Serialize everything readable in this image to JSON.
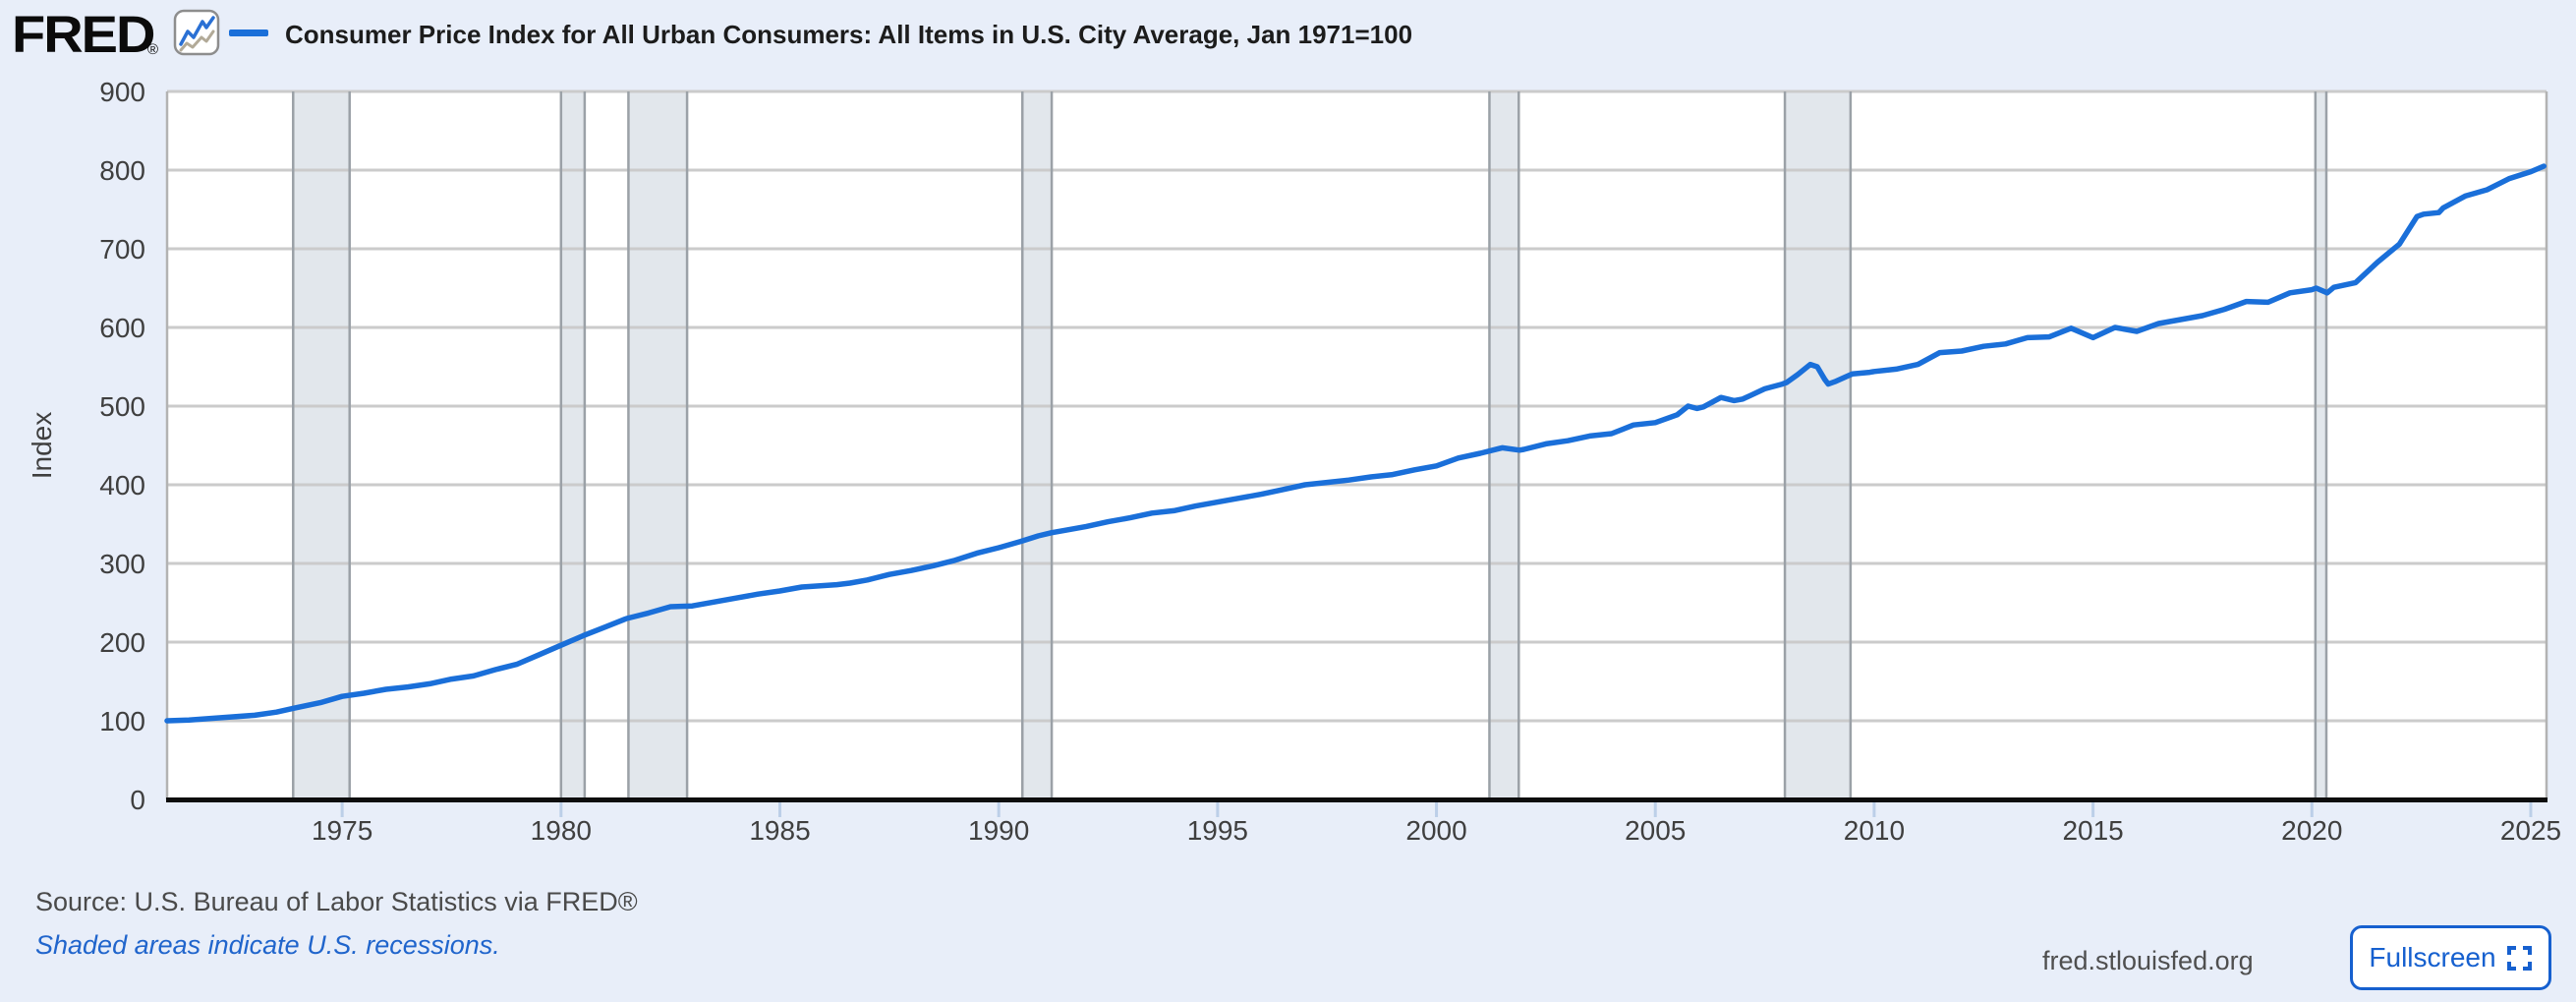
{
  "header": {
    "logo_text": "FRED",
    "registered_mark": "®",
    "title": "Consumer Price Index for All Urban Consumers: All Items in U.S. City Average, Jan 1971=100"
  },
  "footer": {
    "source": "Source: U.S. Bureau of Labor Statistics via FRED®",
    "recessions_note": "Shaded areas indicate U.S. recessions.",
    "site": "fred.stlouisfed.org",
    "fullscreen_label": "Fullscreen"
  },
  "colors": {
    "background": "#e8eef9",
    "plot_bg": "#ffffff",
    "line": "#1a6fd9",
    "gridline": "#cbcbcb",
    "plot_border": "#b3b3b3",
    "band_fill": "#e2e7ec",
    "band_edge": "#9ba1a7",
    "axis": "#0d0d0d",
    "tick_mark": "#bccfe8",
    "tick_label": "#3f3f3f",
    "link_blue": "#2065cc",
    "button_blue": "#1660cf"
  },
  "chart_data": {
    "type": "line",
    "title": "Consumer Price Index for All Urban Consumers: All Items in U.S. City Average, Jan 1971=100",
    "xlabel": "",
    "ylabel": "Index",
    "ylim": [
      0,
      900
    ],
    "xlim": [
      1971,
      2025.36
    ],
    "y_ticks": [
      0,
      100,
      200,
      300,
      400,
      500,
      600,
      700,
      800,
      900
    ],
    "x_ticks": [
      1975,
      1980,
      1985,
      1990,
      1995,
      2000,
      2005,
      2010,
      2015,
      2020,
      2025
    ],
    "grid": "horizontal",
    "legend_position": "top-left",
    "recessions": [
      [
        1973.88,
        1975.17
      ],
      [
        1980.0,
        1980.54
      ],
      [
        1981.54,
        1982.88
      ],
      [
        1990.54,
        1991.21
      ],
      [
        2001.21,
        2001.88
      ],
      [
        2007.96,
        2009.46
      ],
      [
        2020.08,
        2020.33
      ]
    ],
    "series": [
      {
        "name": "Consumer Price Index for All Urban Consumers: All Items in U.S. City Average, Jan 1971=100",
        "points": [
          [
            1971.0,
            100
          ],
          [
            1971.5,
            101
          ],
          [
            1972.0,
            103
          ],
          [
            1972.5,
            105
          ],
          [
            1973.0,
            107
          ],
          [
            1973.5,
            111
          ],
          [
            1973.9,
            116
          ],
          [
            1974.5,
            123
          ],
          [
            1975.0,
            131
          ],
          [
            1975.5,
            135
          ],
          [
            1976.0,
            140
          ],
          [
            1976.5,
            143
          ],
          [
            1977.0,
            147
          ],
          [
            1977.5,
            153
          ],
          [
            1978.0,
            157
          ],
          [
            1978.5,
            165
          ],
          [
            1979.0,
            172
          ],
          [
            1979.5,
            184
          ],
          [
            1980.0,
            196
          ],
          [
            1980.5,
            208
          ],
          [
            1981.0,
            219
          ],
          [
            1981.5,
            230
          ],
          [
            1982.0,
            237
          ],
          [
            1982.5,
            245
          ],
          [
            1983.0,
            246
          ],
          [
            1983.5,
            251
          ],
          [
            1984.0,
            256
          ],
          [
            1984.5,
            261
          ],
          [
            1985.0,
            265
          ],
          [
            1985.5,
            270
          ],
          [
            1986.3,
            273
          ],
          [
            1986.6,
            275
          ],
          [
            1987.0,
            279
          ],
          [
            1987.5,
            286
          ],
          [
            1988.0,
            291
          ],
          [
            1988.5,
            297
          ],
          [
            1989.0,
            304
          ],
          [
            1989.5,
            313
          ],
          [
            1990.0,
            320
          ],
          [
            1990.5,
            328
          ],
          [
            1990.9,
            335
          ],
          [
            1991.2,
            339
          ],
          [
            1991.5,
            342
          ],
          [
            1992.0,
            347
          ],
          [
            1992.5,
            353
          ],
          [
            1993.0,
            358
          ],
          [
            1993.5,
            364
          ],
          [
            1994.0,
            367
          ],
          [
            1994.5,
            373
          ],
          [
            1995.0,
            378
          ],
          [
            1995.5,
            383
          ],
          [
            1996.0,
            388
          ],
          [
            1996.5,
            394
          ],
          [
            1997.0,
            400
          ],
          [
            1997.5,
            403
          ],
          [
            1998.0,
            406
          ],
          [
            1998.5,
            410
          ],
          [
            1999.0,
            413
          ],
          [
            1999.5,
            419
          ],
          [
            2000.0,
            424
          ],
          [
            2000.5,
            434
          ],
          [
            2001.0,
            440
          ],
          [
            2001.5,
            447
          ],
          [
            2001.9,
            444
          ],
          [
            2002.0,
            445
          ],
          [
            2002.5,
            452
          ],
          [
            2003.0,
            456
          ],
          [
            2003.5,
            462
          ],
          [
            2004.0,
            465
          ],
          [
            2004.5,
            476
          ],
          [
            2005.0,
            479
          ],
          [
            2005.5,
            489
          ],
          [
            2005.75,
            500
          ],
          [
            2005.95,
            497
          ],
          [
            2006.1,
            499
          ],
          [
            2006.5,
            511
          ],
          [
            2006.8,
            507
          ],
          [
            2007.0,
            509
          ],
          [
            2007.5,
            522
          ],
          [
            2007.9,
            528
          ],
          [
            2008.0,
            530
          ],
          [
            2008.25,
            540
          ],
          [
            2008.54,
            553
          ],
          [
            2008.7,
            550
          ],
          [
            2008.87,
            534
          ],
          [
            2008.95,
            528
          ],
          [
            2009.1,
            531
          ],
          [
            2009.5,
            541
          ],
          [
            2009.9,
            543
          ],
          [
            2010.0,
            544
          ],
          [
            2010.5,
            547
          ],
          [
            2011.0,
            553
          ],
          [
            2011.5,
            568
          ],
          [
            2012.0,
            570
          ],
          [
            2012.5,
            576
          ],
          [
            2013.0,
            579
          ],
          [
            2013.5,
            587
          ],
          [
            2014.0,
            588
          ],
          [
            2014.5,
            599
          ],
          [
            2015.0,
            587
          ],
          [
            2015.5,
            600
          ],
          [
            2016.0,
            595
          ],
          [
            2016.5,
            605
          ],
          [
            2017.0,
            610
          ],
          [
            2017.5,
            615
          ],
          [
            2018.0,
            623
          ],
          [
            2018.5,
            633
          ],
          [
            2019.0,
            632
          ],
          [
            2019.5,
            644
          ],
          [
            2020.0,
            648
          ],
          [
            2020.1,
            650
          ],
          [
            2020.35,
            644
          ],
          [
            2020.5,
            651
          ],
          [
            2021.0,
            657
          ],
          [
            2021.5,
            683
          ],
          [
            2022.0,
            706
          ],
          [
            2022.4,
            741
          ],
          [
            2022.55,
            744
          ],
          [
            2022.9,
            746
          ],
          [
            2023.0,
            752
          ],
          [
            2023.5,
            767
          ],
          [
            2024.0,
            775
          ],
          [
            2024.5,
            789
          ],
          [
            2025.0,
            798
          ],
          [
            2025.3,
            805
          ]
        ]
      }
    ]
  }
}
